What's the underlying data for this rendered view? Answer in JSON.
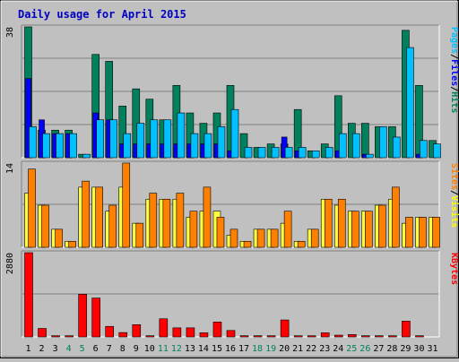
{
  "chart_data": {
    "type": "bar",
    "title": "Daily usage for April 2015",
    "categories": [
      "1",
      "2",
      "3",
      "4",
      "5",
      "6",
      "7",
      "8",
      "9",
      "10",
      "11",
      "12",
      "13",
      "14",
      "15",
      "16",
      "17",
      "18",
      "19",
      "20",
      "21",
      "22",
      "23",
      "24",
      "25",
      "26",
      "27",
      "28",
      "29",
      "30",
      "31"
    ],
    "weekend_days": [
      "4",
      "5",
      "11",
      "12",
      "18",
      "19",
      "25",
      "26"
    ],
    "panels": [
      {
        "name": "top",
        "ymax_label": "38",
        "ylim": [
          0,
          38
        ],
        "legend": [
          "Pages",
          "/",
          "Files",
          "/",
          "Hits"
        ],
        "legend_colors": [
          "#00c0ff",
          "#000000",
          "#0000ff",
          "#000000",
          "#00805c"
        ],
        "series": [
          {
            "name": "Hits",
            "color": "#00805c",
            "values": [
              38,
              8,
              8,
              8,
              1,
              30,
              28,
              15,
              20,
              17,
              11,
              21,
              13,
              10,
              13,
              21,
              7,
              3,
              4,
              4,
              14,
              2,
              4,
              18,
              10,
              10,
              9,
              9,
              37,
              21,
              5
            ]
          },
          {
            "name": "Files",
            "color": "#0000ff",
            "values": [
              23,
              11,
              7,
              7,
              0,
              13,
              11,
              4,
              4,
              4,
              4,
              4,
              4,
              4,
              4,
              2,
              0,
              0,
              0,
              6,
              2,
              0,
              0,
              2,
              0,
              1,
              0,
              0,
              0,
              1,
              0
            ]
          },
          {
            "name": "Pages",
            "color": "#00c0ff",
            "values": [
              9,
              7,
              7,
              7,
              1,
              11,
              11,
              7,
              10,
              11,
              11,
              13,
              7,
              7,
              9,
              14,
              3,
              3,
              3,
              3,
              3,
              2,
              3,
              7,
              7,
              1,
              9,
              6,
              32,
              5,
              4
            ]
          }
        ]
      },
      {
        "name": "middle",
        "ymax_label": "14",
        "ylim": [
          0,
          14
        ],
        "legend": [
          "Sites",
          "/",
          "Visits"
        ],
        "legend_colors": [
          "#ff8000",
          "#000000",
          "#ffff00"
        ],
        "series": [
          {
            "name": "Visits",
            "color": "#ffff40",
            "values": [
              9,
              7,
              3,
              1,
              10,
              10,
              6,
              10,
              4,
              8,
              8,
              8,
              5,
              6,
              6,
              2,
              1,
              3,
              3,
              4,
              1,
              3,
              8,
              7,
              6,
              6,
              7,
              8,
              4,
              5,
              5
            ]
          },
          {
            "name": "Sites",
            "color": "#ff8000",
            "values": [
              13,
              7,
              3,
              1,
              11,
              10,
              7,
              14,
              4,
              9,
              8,
              9,
              6,
              10,
              5,
              3,
              1,
              3,
              3,
              6,
              1,
              3,
              8,
              8,
              6,
              6,
              7,
              10,
              5,
              5,
              5
            ]
          }
        ]
      },
      {
        "name": "bottom",
        "ymax_label": "2880",
        "ylim": [
          0,
          2880
        ],
        "legend": [
          "KBytes"
        ],
        "legend_colors": [
          "#ff0000"
        ],
        "series": [
          {
            "name": "KBytes",
            "color": "#ff0000",
            "values": [
              2880,
              290,
              40,
              40,
              1460,
              1330,
              360,
              150,
              420,
              40,
              620,
              310,
              310,
              140,
              510,
              220,
              40,
              40,
              40,
              580,
              40,
              40,
              140,
              60,
              80,
              40,
              40,
              40,
              540,
              40,
              0
            ]
          }
        ]
      }
    ]
  }
}
